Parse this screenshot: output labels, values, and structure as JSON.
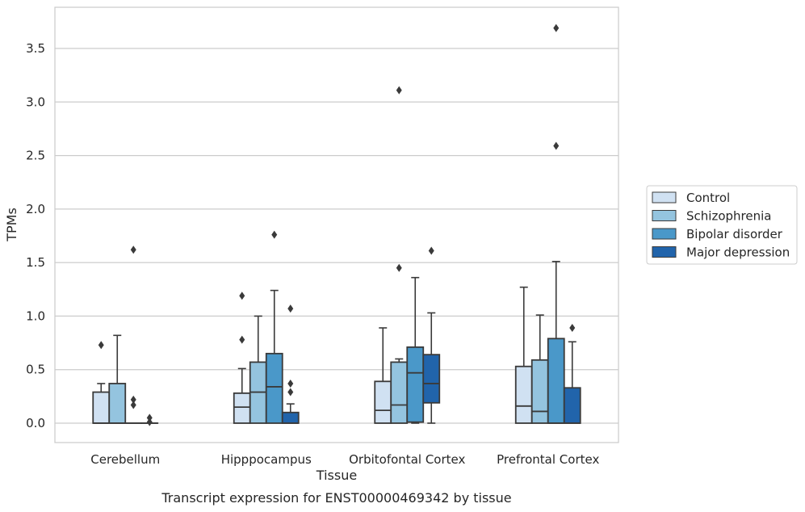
{
  "caption": "Transcript expression for ENST00000469342 by tissue",
  "chart_data": {
    "type": "box",
    "title": "",
    "xlabel": "Tissue",
    "ylabel": "TPMs",
    "ylim": [
      -0.18,
      3.88
    ],
    "yticks": [
      0.0,
      0.5,
      1.0,
      1.5,
      2.0,
      2.5,
      3.0,
      3.5
    ],
    "ytick_labels": [
      "0.0",
      "0.5",
      "1.0",
      "1.5",
      "2.0",
      "2.5",
      "3.0",
      "3.5"
    ],
    "grid": "horizontal",
    "legend_position": "right",
    "categories": [
      "Cerebellum",
      "Hipppocampus",
      "Orbitofontal Cortex",
      "Prefrontal Cortex"
    ],
    "series": [
      {
        "name": "Control",
        "color": "#d0e1f2",
        "boxes": [
          {
            "whislo": 0.0,
            "q1": 0.0,
            "med": 0.0,
            "q3": 0.29,
            "whishi": 0.37,
            "fliers": [
              0.73
            ]
          },
          {
            "whislo": 0.0,
            "q1": 0.0,
            "med": 0.15,
            "q3": 0.28,
            "whishi": 0.51,
            "fliers": [
              0.78,
              1.19
            ]
          },
          {
            "whislo": 0.0,
            "q1": 0.0,
            "med": 0.12,
            "q3": 0.39,
            "whishi": 0.89,
            "fliers": []
          },
          {
            "whislo": 0.0,
            "q1": 0.0,
            "med": 0.16,
            "q3": 0.53,
            "whishi": 1.27,
            "fliers": []
          }
        ]
      },
      {
        "name": "Schizophrenia",
        "color": "#94c4df",
        "boxes": [
          {
            "whislo": 0.0,
            "q1": 0.0,
            "med": 0.0,
            "q3": 0.37,
            "whishi": 0.82,
            "fliers": []
          },
          {
            "whislo": 0.0,
            "q1": 0.0,
            "med": 0.29,
            "q3": 0.57,
            "whishi": 1.0,
            "fliers": []
          },
          {
            "whislo": 0.0,
            "q1": 0.0,
            "med": 0.17,
            "q3": 0.57,
            "whishi": 0.6,
            "fliers": [
              1.45,
              3.11
            ]
          },
          {
            "whislo": 0.0,
            "q1": 0.0,
            "med": 0.11,
            "q3": 0.59,
            "whishi": 1.01,
            "fliers": []
          }
        ]
      },
      {
        "name": "Bipolar disorder",
        "color": "#4a98c9",
        "boxes": [
          {
            "whislo": 0.0,
            "q1": 0.0,
            "med": 0.0,
            "q3": 0.0,
            "whishi": 0.0,
            "fliers": [
              0.17,
              0.22,
              1.62
            ]
          },
          {
            "whislo": 0.0,
            "q1": 0.0,
            "med": 0.34,
            "q3": 0.65,
            "whishi": 1.24,
            "fliers": [
              1.76
            ]
          },
          {
            "whislo": 0.0,
            "q1": 0.01,
            "med": 0.47,
            "q3": 0.71,
            "whishi": 1.36,
            "fliers": []
          },
          {
            "whislo": 0.0,
            "q1": 0.0,
            "med": 0.0,
            "q3": 0.79,
            "whishi": 1.51,
            "fliers": [
              2.59,
              3.69
            ]
          }
        ]
      },
      {
        "name": "Major depression",
        "color": "#2164ab",
        "boxes": [
          {
            "whislo": 0.0,
            "q1": 0.0,
            "med": 0.0,
            "q3": 0.0,
            "whishi": 0.0,
            "fliers": [
              0.01,
              0.05
            ]
          },
          {
            "whislo": 0.0,
            "q1": 0.0,
            "med": 0.0,
            "q3": 0.1,
            "whishi": 0.18,
            "fliers": [
              0.29,
              0.37,
              1.07
            ]
          },
          {
            "whislo": 0.0,
            "q1": 0.19,
            "med": 0.37,
            "q3": 0.64,
            "whishi": 1.03,
            "fliers": [
              1.61
            ]
          },
          {
            "whislo": 0.0,
            "q1": 0.0,
            "med": 0.0,
            "q3": 0.33,
            "whishi": 0.76,
            "fliers": [
              0.89
            ]
          }
        ]
      }
    ]
  }
}
